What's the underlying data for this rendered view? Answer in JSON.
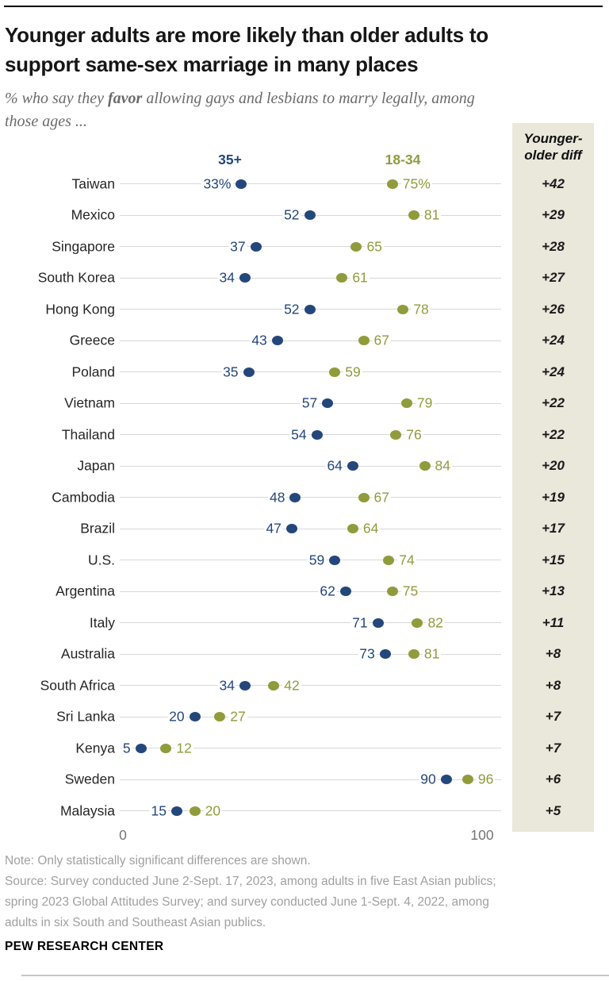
{
  "page": {
    "title_line1": "Younger adults are more likely than older adults to",
    "title_line2": "support same-sex marriage in many places",
    "subtitle": {
      "prefix": "% who say they ",
      "emphasis": "favor",
      "suffix": " allowing gays and lesbians to marry legally, among",
      "line2": "those ages ..."
    },
    "note": "Note: Only statistically significant differences are shown.",
    "source_lines": [
      "Source: Survey conducted June 2-Sept. 17, 2023, among adults in five East Asian publics;",
      "spring 2023 Global Attitudes Survey; and survey conducted June 1-Sept. 4, 2022, among",
      "adults in six South and Southeast Asian publics."
    ],
    "wordmark": "PEW RESEARCH CENTER"
  },
  "legend": {
    "old": "35+",
    "young": "18-34"
  },
  "diff_column": {
    "header_line1": "Younger-",
    "header_line2": "older diff"
  },
  "axis": {
    "ticks": [
      "0",
      "100"
    ]
  },
  "colors": {
    "old": "#24477B",
    "young": "#909B3B",
    "row_line": "#D8D8D8",
    "diff_bg": "#EAE7DB",
    "diff_text": "#1A1A1A"
  },
  "chart_data": {
    "type": "scatter",
    "title": "Younger adults are more likely than older adults to support same-sex marriage in many places",
    "subtitle": "% who say they favor allowing gays and lesbians to marry legally, among those ages ...",
    "xlabel": "",
    "ylabel": "",
    "xlim": [
      0,
      100
    ],
    "x_ticks": [
      0,
      100
    ],
    "grid": false,
    "legend_position": "top",
    "categories": [
      "Taiwan",
      "Mexico",
      "Singapore",
      "South Korea",
      "Hong Kong",
      "Greece",
      "Poland",
      "Vietnam",
      "Thailand",
      "Japan",
      "Cambodia",
      "Brazil",
      "U.S.",
      "Argentina",
      "Italy",
      "Australia",
      "South Africa",
      "Sri Lanka",
      "Kenya",
      "Sweden",
      "Malaysia"
    ],
    "series": [
      {
        "name": "35+",
        "color": "#24477B",
        "values": [
          33,
          52,
          37,
          34,
          52,
          43,
          35,
          57,
          54,
          64,
          48,
          47,
          59,
          62,
          71,
          73,
          34,
          20,
          5,
          90,
          15
        ],
        "labels": [
          "33%",
          "52",
          "37",
          "34",
          "52",
          "43",
          "35",
          "57",
          "54",
          "64",
          "48",
          "47",
          "59",
          "62",
          "71",
          "73",
          "34",
          "20",
          "5",
          "90",
          "15"
        ]
      },
      {
        "name": "18-34",
        "color": "#909B3B",
        "values": [
          75,
          81,
          65,
          61,
          78,
          67,
          59,
          79,
          76,
          84,
          67,
          64,
          74,
          75,
          82,
          81,
          42,
          27,
          12,
          96,
          20
        ],
        "labels": [
          "75%",
          "81",
          "65",
          "61",
          "78",
          "67",
          "59",
          "79",
          "76",
          "84",
          "67",
          "64",
          "74",
          "75",
          "82",
          "81",
          "42",
          "27",
          "12",
          "96",
          "20"
        ]
      }
    ],
    "diff_labels": [
      "+42",
      "+29",
      "+28",
      "+27",
      "+26",
      "+24",
      "+24",
      "+22",
      "+22",
      "+20",
      "+19",
      "+17",
      "+15",
      "+13",
      "+11",
      "+8",
      "+8",
      "+7",
      "+7",
      "+6",
      "+5"
    ]
  }
}
